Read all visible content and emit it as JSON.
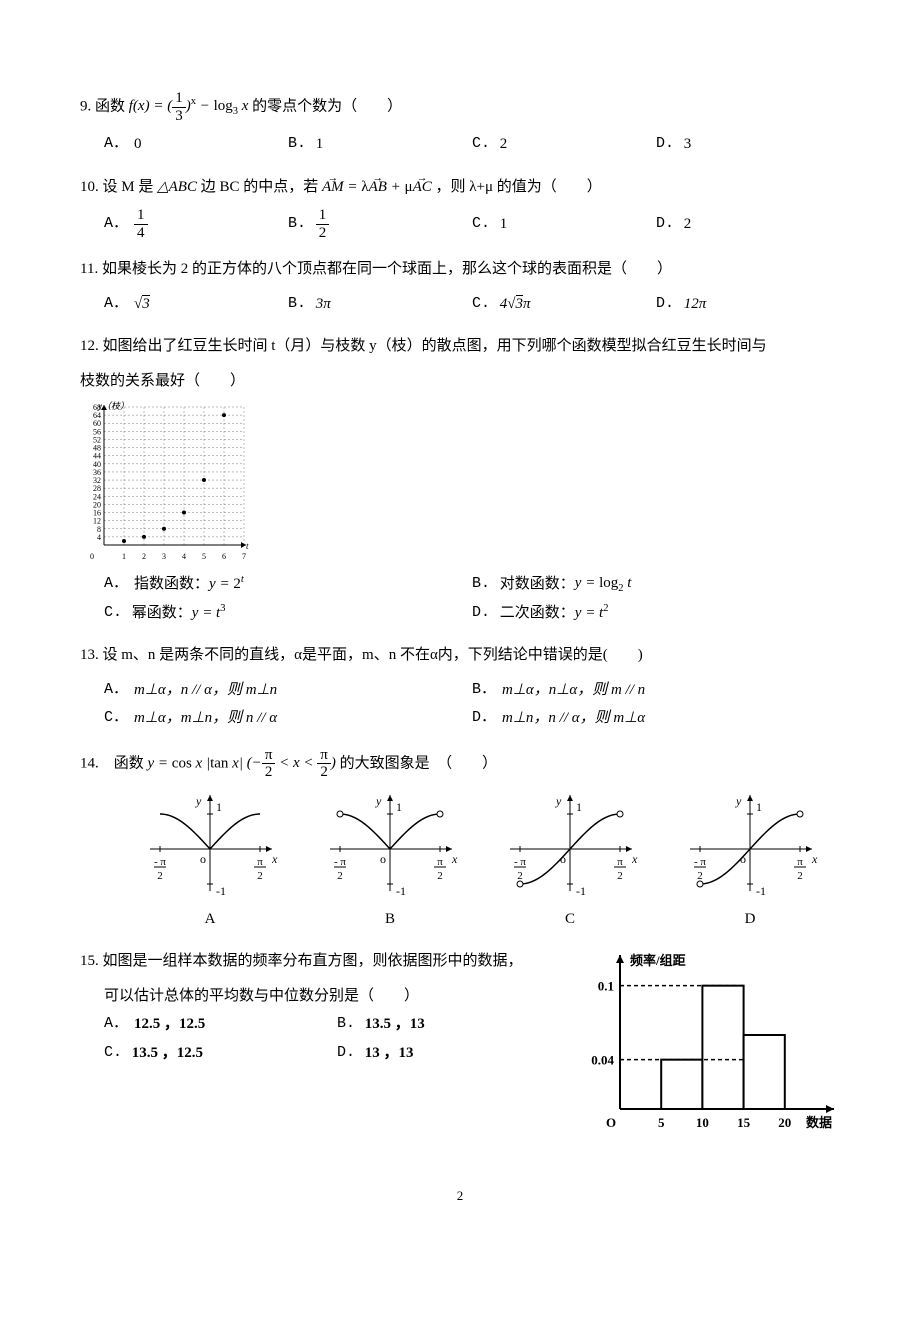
{
  "page_number": "2",
  "q9": {
    "stem_prefix": "9. 函数 ",
    "formula": "f(x) = (1/3)^x − log₃ x",
    "stem_suffix": " 的零点个数为（　　）",
    "opts": {
      "A": "0",
      "B": "1",
      "C": "2",
      "D": "3"
    }
  },
  "q10": {
    "stem_prefix": "10. 设 M 是 ",
    "tri": "△ABC",
    "stem_mid": " 边 BC 的中点，若 ",
    "eqn": "AM = λAB + μAC",
    "stem_suffix": "，则 λ+μ 的值为（　　）",
    "opts": {
      "A": "1/4",
      "B": "1/2",
      "C": "1",
      "D": "2"
    }
  },
  "q11": {
    "stem": "11. 如果棱长为 2 的正方体的八个顶点都在同一个球面上，那么这个球的表面积是（　　）",
    "opts": {
      "A": "√3",
      "B": "3π",
      "C": "4√3π",
      "D": "12π"
    }
  },
  "q12": {
    "stem1": "12. 如图给出了红豆生长时间 t（月）与枝数 y（枝）的散点图，用下列哪个函数模型拟合红豆生长时间与",
    "stem2": "枝数的关系最好（　　）",
    "chart": {
      "type": "scatter",
      "x_label": "t（月）",
      "y_label": "y（枝）",
      "xlim": [
        0,
        7
      ],
      "ylim": [
        0,
        68
      ],
      "xtick_step": 1,
      "ytick_step": 4,
      "grid_color": "#7a7a7a",
      "dash": "2,2",
      "axis_color": "#000000",
      "point_color": "#000000",
      "label_fontsize": 9,
      "tick_fontsize": 8,
      "points": [
        [
          1,
          2
        ],
        [
          2,
          4
        ],
        [
          3,
          8
        ],
        [
          4,
          16
        ],
        [
          5,
          32
        ],
        [
          6,
          64
        ]
      ]
    },
    "opts": {
      "A": {
        "pre": "指数函数：",
        "body": "y = 2ᵗ"
      },
      "B": {
        "pre": "对数函数：",
        "body": "y = log₂ t"
      },
      "C": {
        "pre": "幂函数：",
        "body": "y = t³"
      },
      "D": {
        "pre": "二次函数：",
        "body": "y = t²"
      }
    }
  },
  "q13": {
    "stem": "13. 设 m、n 是两条不同的直线，α是平面，m、n 不在α内，下列结论中错误的是(　　)",
    "opts": {
      "A": "m⊥α，n // α，则 m⊥n",
      "B": "m⊥α，n⊥α，则 m // n",
      "C": "m⊥α，m⊥n，则 n // α",
      "D": "m⊥n，n // α，则 m⊥α"
    }
  },
  "q14": {
    "stem_prefix": "14.　函数 ",
    "formula": "y = cos x |tan x|",
    "range": "(−π/2 < x < π/2)",
    "stem_suffix": " 的大致图象是　（　　）",
    "graphs": {
      "axis_color": "#000000",
      "curve_color": "#000000",
      "label_fontsize": 12,
      "width": 140,
      "height": 110,
      "labels": {
        "A": "A",
        "B": "B",
        "C": "C",
        "D": "D"
      },
      "xticks": [
        "-π/2",
        "π/2"
      ],
      "yticks": [
        "1",
        "-1"
      ],
      "origin": "o",
      "xaxis": "x",
      "yaxis": "y"
    }
  },
  "q15": {
    "stem1": "15. 如图是一组样本数据的频率分布直方图，则依据图形中的数据，",
    "stem2": "可以估计总体的平均数与中位数分别是（　　）",
    "opts": {
      "A": "12.5 ，12.5",
      "B": "13.5 ，13",
      "C": "13.5 ，12.5",
      "D": "13 ，13"
    },
    "histogram": {
      "type": "histogram",
      "x_label": "数据",
      "y_label": "频率/组距",
      "xticks": [
        5,
        10,
        15,
        20
      ],
      "yticks": [
        0.04,
        0.1
      ],
      "bins": [
        [
          5,
          10,
          0.04
        ],
        [
          10,
          15,
          0.1
        ],
        [
          15,
          20,
          0.06
        ]
      ],
      "axis_color": "#000000",
      "bar_fill": "#ffffff",
      "bar_stroke": "#000000",
      "dash": "4,3",
      "label_fontsize": 13,
      "tick_fontsize": 13,
      "xlim": [
        0,
        25
      ],
      "ylim": [
        0,
        0.12
      ]
    }
  }
}
